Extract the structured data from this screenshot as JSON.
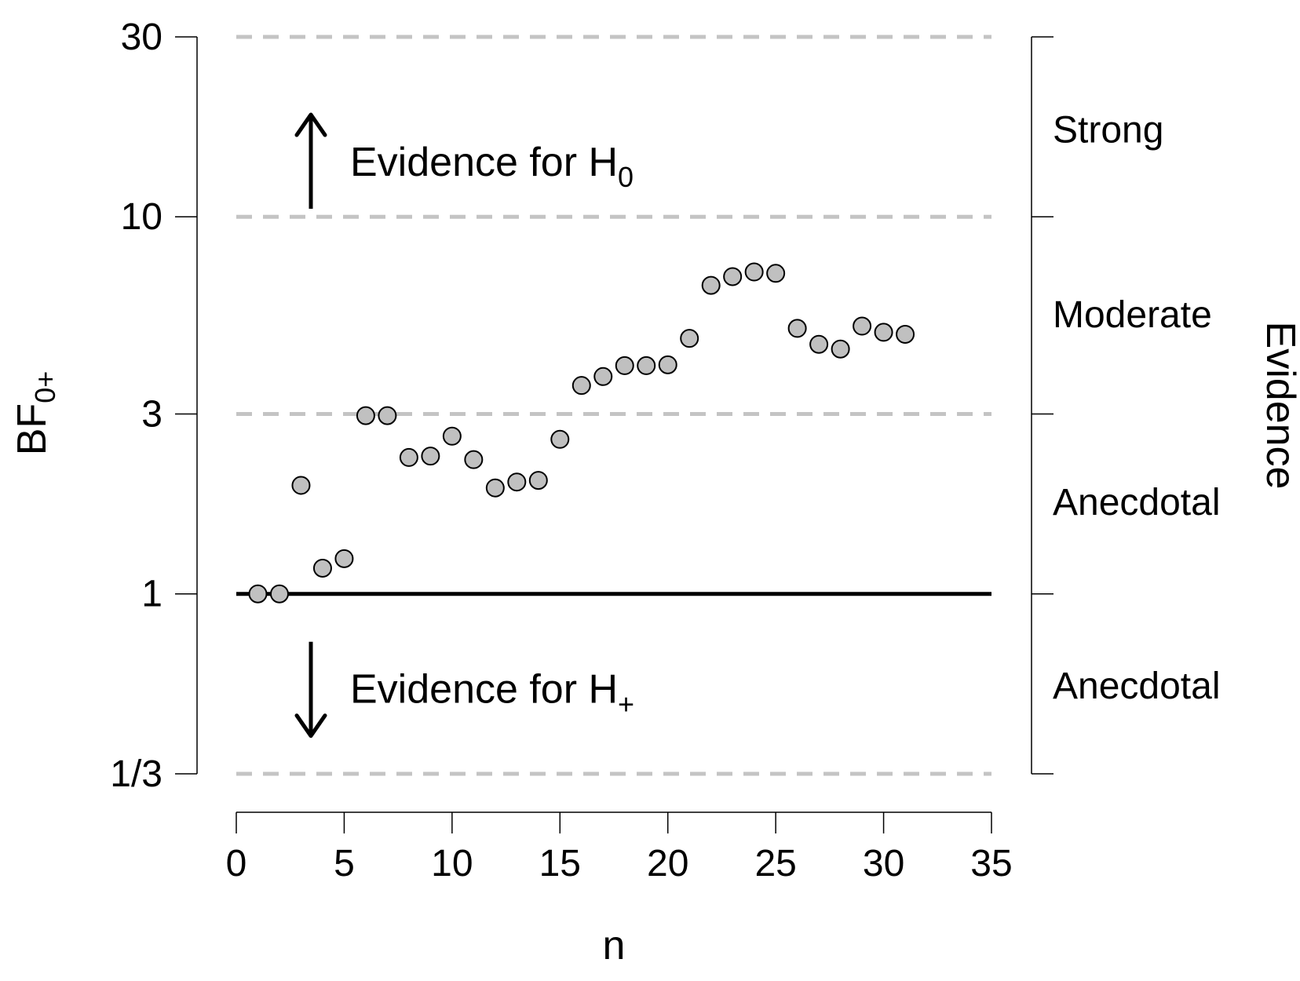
{
  "chart_data": {
    "type": "scatter",
    "xlabel": "n",
    "ylabel": {
      "main": "BF",
      "sub": "0+"
    },
    "y_scale": "log",
    "xlim": [
      0,
      35
    ],
    "ylim": [
      0.3333,
      30
    ],
    "x_ticks": [
      0,
      5,
      10,
      15,
      20,
      25,
      30,
      35
    ],
    "y_ticks": [
      {
        "value": 0.3333,
        "label": "1/3"
      },
      {
        "value": 1,
        "label": "1"
      },
      {
        "value": 3,
        "label": "3"
      },
      {
        "value": 10,
        "label": "10"
      },
      {
        "value": 30,
        "label": "30"
      }
    ],
    "reference_lines": [
      {
        "y": 0.3333,
        "style": "dashed"
      },
      {
        "y": 3,
        "style": "dashed"
      },
      {
        "y": 10,
        "style": "dashed"
      },
      {
        "y": 30,
        "style": "dashed"
      },
      {
        "y": 1,
        "style": "solid"
      }
    ],
    "annotations": [
      {
        "id": "h0",
        "text": "Evidence for H",
        "sub": "0",
        "direction": "up",
        "y": 14
      },
      {
        "id": "hplus",
        "text": "Evidence for H",
        "sub": "+",
        "direction": "down",
        "y": 0.56
      }
    ],
    "right_axis": {
      "title": "Evidence",
      "categories": [
        {
          "label": "Strong",
          "y": 17
        },
        {
          "label": "Moderate",
          "y": 5.5
        },
        {
          "label": "Anecdotal",
          "y": 1.75
        },
        {
          "label": "Anecdotal",
          "y": 0.57
        }
      ]
    },
    "point_color": "#c0c0c0",
    "series": [
      {
        "x": [
          1,
          2,
          3,
          4,
          5,
          6,
          7,
          8,
          9,
          10,
          11,
          12,
          13,
          14,
          15,
          16,
          17,
          18,
          19,
          20,
          21,
          22,
          23,
          24,
          25,
          26,
          27,
          28,
          29,
          30,
          31
        ],
        "values": [
          1.0,
          1.0,
          1.94,
          1.17,
          1.24,
          2.97,
          2.97,
          2.3,
          2.32,
          2.62,
          2.27,
          1.91,
          1.98,
          2.0,
          2.57,
          3.57,
          3.77,
          4.03,
          4.03,
          4.05,
          4.76,
          6.58,
          6.94,
          7.14,
          7.08,
          5.06,
          4.59,
          4.46,
          5.13,
          4.94,
          4.88
        ]
      }
    ]
  }
}
